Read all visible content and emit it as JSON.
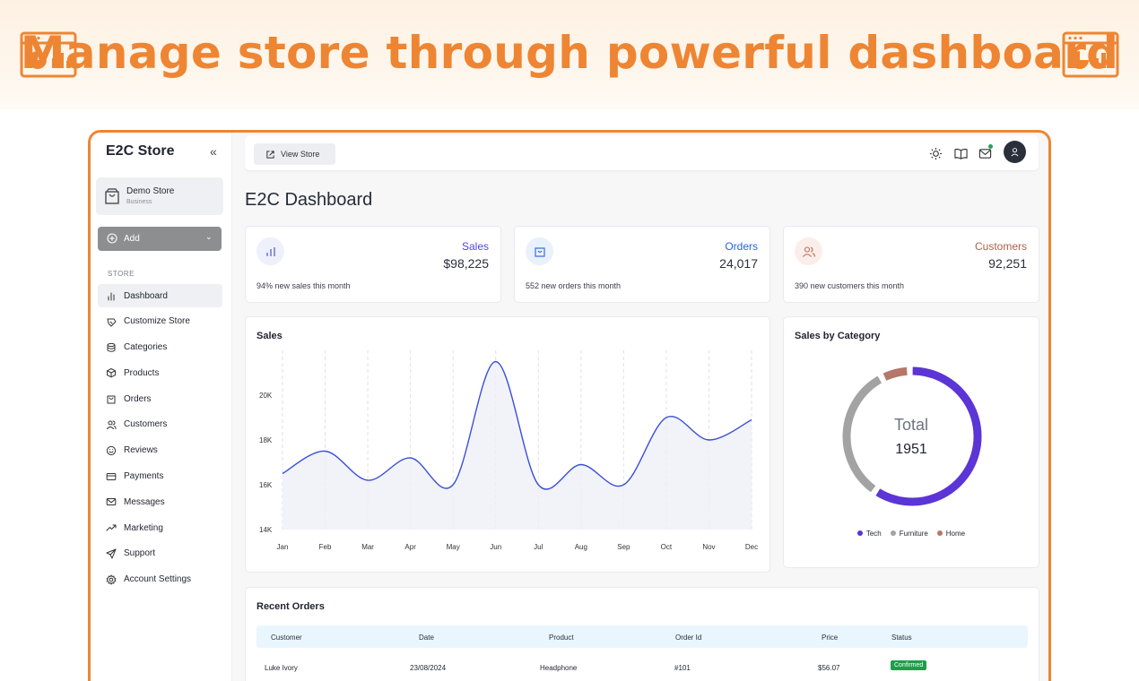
{
  "banner": {
    "title": "Manage store through powerful dashboard"
  },
  "sidebar": {
    "brand": "E2C Store",
    "store": {
      "name": "Demo Store",
      "type": "Business"
    },
    "add_label": "Add",
    "section": "STORE",
    "items": [
      {
        "label": "Dashboard",
        "icon": "bar-chart-icon"
      },
      {
        "label": "Customize Store",
        "icon": "brush-icon"
      },
      {
        "label": "Categories",
        "icon": "database-icon"
      },
      {
        "label": "Products",
        "icon": "package-icon"
      },
      {
        "label": "Orders",
        "icon": "shopping-bag-icon"
      },
      {
        "label": "Customers",
        "icon": "users-icon"
      },
      {
        "label": "Reviews",
        "icon": "smile-icon"
      },
      {
        "label": "Payments",
        "icon": "credit-card-icon"
      },
      {
        "label": "Messages",
        "icon": "mail-icon"
      },
      {
        "label": "Marketing",
        "icon": "trending-up-icon"
      },
      {
        "label": "Support",
        "icon": "send-icon"
      },
      {
        "label": "Account Settings",
        "icon": "gear-icon"
      }
    ]
  },
  "topbar": {
    "view_store": "View Store"
  },
  "page_title": "E2C Dashboard",
  "stats": [
    {
      "label": "Sales",
      "value": "$98,225",
      "note": "94% new sales this month",
      "color": "#4f46e5"
    },
    {
      "label": "Orders",
      "value": "24,017",
      "note": "552 new orders this month",
      "color": "#2563eb"
    },
    {
      "label": "Customers",
      "value": "92,251",
      "note": "390 new customers this month",
      "color": "#b45309"
    }
  ],
  "sales_chart": {
    "title": "Sales",
    "chart_data": {
      "type": "line",
      "title": "Sales",
      "categories": [
        "Jan",
        "Feb",
        "Mar",
        "Apr",
        "May",
        "Jun",
        "Jul",
        "Aug",
        "Sep",
        "Oct",
        "Nov",
        "Dec"
      ],
      "values": [
        16500,
        17500,
        16200,
        17200,
        16000,
        21500,
        16000,
        16900,
        16000,
        19000,
        18000,
        18900
      ],
      "y_ticks": [
        "14K",
        "16K",
        "18K",
        "20K"
      ],
      "ylim": [
        14000,
        22000
      ],
      "color": "#3b4fd8"
    }
  },
  "category_chart": {
    "title": "Sales by Category",
    "total_label": "Total",
    "total_value": "1951",
    "chart_data": {
      "type": "pie",
      "labels": [
        "Tech",
        "Furniture",
        "Home"
      ],
      "values": [
        60,
        33,
        7
      ],
      "colors": [
        "#5b35d5",
        "#a3a3a3",
        "#b5776a"
      ]
    }
  },
  "recent_orders": {
    "title": "Recent Orders",
    "columns": [
      "Customer",
      "Date",
      "Product",
      "Order Id",
      "Price",
      "Status"
    ],
    "rows": [
      {
        "customer": "Luke Ivory",
        "date": "23/08/2024",
        "product": "Headphone",
        "order_id": "#101",
        "price": "$56.07",
        "status": "Confirmed"
      }
    ]
  }
}
